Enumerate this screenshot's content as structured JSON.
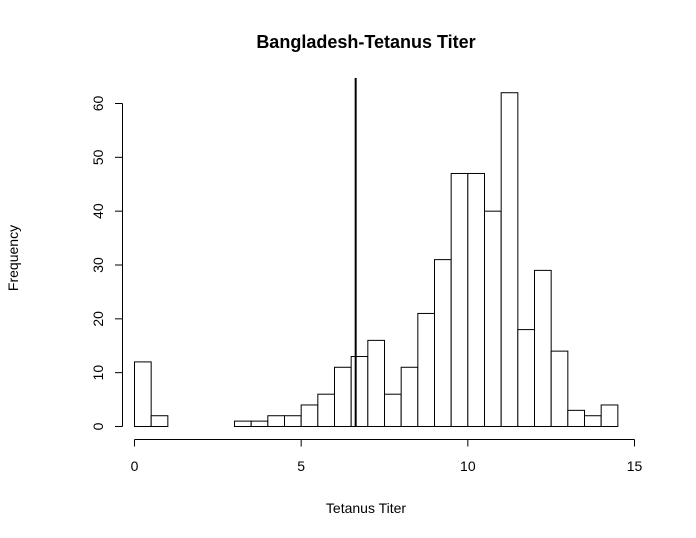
{
  "chart_data": {
    "type": "bar",
    "title": "Bangladesh-Tetanus Titer",
    "xlabel": "Tetanus Titer",
    "ylabel": "Frequency",
    "bin_width": 0.5,
    "bin_start": 0,
    "counts": [
      12,
      2,
      0,
      0,
      0,
      0,
      1,
      1,
      2,
      2,
      4,
      6,
      11,
      13,
      16,
      6,
      11,
      21,
      31,
      47,
      47,
      40,
      62,
      18,
      29,
      14,
      3,
      2,
      4
    ],
    "xlim": [
      0,
      15
    ],
    "ylim": [
      0,
      62
    ],
    "x_ticks": [
      "0",
      "5",
      "10",
      "15"
    ],
    "y_ticks": [
      "0",
      "10",
      "20",
      "30",
      "40",
      "50",
      "60"
    ],
    "reference_line_x": 6.65,
    "colors": {
      "bar_fill": "#ffffff",
      "bar_stroke": "#000000",
      "line": "#000000"
    }
  }
}
